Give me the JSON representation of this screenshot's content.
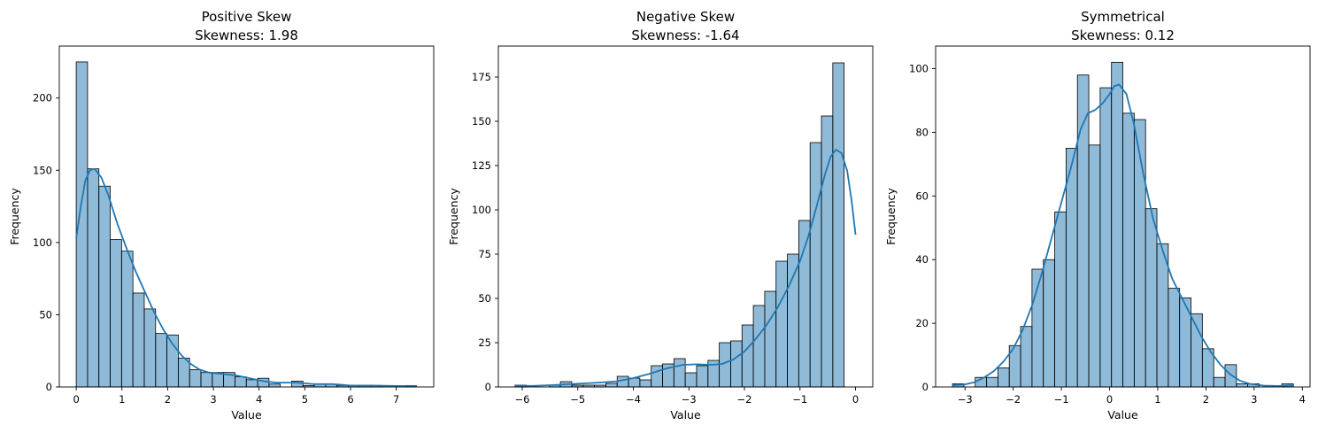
{
  "chart_data": [
    {
      "type": "histogram",
      "title": "Positive Skew",
      "subtitle": "Skewness: 1.98",
      "xlabel": "Value",
      "ylabel": "Frequency",
      "xlim": [
        -0.37,
        7.82
      ],
      "ylim": [
        0,
        236
      ],
      "xticks": [
        0,
        1,
        2,
        3,
        4,
        5,
        6,
        7
      ],
      "yticks": [
        0,
        50,
        100,
        150,
        200
      ],
      "bin_start": 0,
      "bin_width": 0.248,
      "counts": [
        225,
        151,
        139,
        102,
        94,
        65,
        54,
        37,
        36,
        20,
        12,
        10,
        10,
        10,
        7,
        5,
        6,
        2,
        0,
        4,
        1,
        2,
        2,
        1,
        1,
        1,
        1,
        0,
        0,
        1
      ],
      "kde_points": [
        [
          0,
          103
        ],
        [
          0.1,
          125
        ],
        [
          0.2,
          143
        ],
        [
          0.3,
          150
        ],
        [
          0.4,
          151
        ],
        [
          0.55,
          145
        ],
        [
          0.7,
          133
        ],
        [
          0.9,
          113
        ],
        [
          1.1,
          96
        ],
        [
          1.3,
          80
        ],
        [
          1.5,
          66
        ],
        [
          1.7,
          52
        ],
        [
          1.9,
          40
        ],
        [
          2.1,
          30
        ],
        [
          2.3,
          22
        ],
        [
          2.5,
          16
        ],
        [
          2.7,
          12
        ],
        [
          2.9,
          10
        ],
        [
          3.2,
          9
        ],
        [
          3.5,
          8
        ],
        [
          3.8,
          6
        ],
        [
          4.1,
          4
        ],
        [
          4.4,
          3
        ],
        [
          4.8,
          3
        ],
        [
          5.2,
          2
        ],
        [
          5.6,
          2
        ],
        [
          6.0,
          1
        ],
        [
          6.5,
          1
        ],
        [
          7.0,
          0.7
        ],
        [
          7.45,
          0.6
        ]
      ]
    },
    {
      "type": "histogram",
      "title": "Negative Skew",
      "subtitle": "Skewness: -1.64",
      "xlabel": "Value",
      "ylabel": "Frequency",
      "xlim": [
        -6.43,
        0.31
      ],
      "ylim": [
        0,
        192.5
      ],
      "xticks": [
        -6,
        -5,
        -4,
        -3,
        -2,
        -1,
        0
      ],
      "yticks": [
        0,
        25,
        50,
        75,
        100,
        125,
        150,
        175
      ],
      "bin_start": -6.13,
      "bin_width": 0.2043,
      "counts": [
        1,
        0,
        0,
        1,
        3,
        1,
        1,
        1,
        2,
        6,
        5,
        4,
        12,
        13,
        16,
        8,
        12,
        15,
        25,
        26,
        35,
        46,
        54,
        71,
        75,
        94,
        138,
        153,
        183
      ],
      "kde_points": [
        [
          -6.13,
          0.6
        ],
        [
          -5.8,
          0.6
        ],
        [
          -5.5,
          1
        ],
        [
          -5.2,
          1.5
        ],
        [
          -4.9,
          2
        ],
        [
          -4.6,
          2.5
        ],
        [
          -4.3,
          3.2
        ],
        [
          -4.0,
          5
        ],
        [
          -3.7,
          7.5
        ],
        [
          -3.4,
          10.5
        ],
        [
          -3.1,
          12.5
        ],
        [
          -2.85,
          12.8
        ],
        [
          -2.6,
          12.5
        ],
        [
          -2.4,
          13
        ],
        [
          -2.2,
          15.5
        ],
        [
          -2.0,
          20
        ],
        [
          -1.8,
          27
        ],
        [
          -1.6,
          35
        ],
        [
          -1.4,
          45
        ],
        [
          -1.2,
          57
        ],
        [
          -1.0,
          71
        ],
        [
          -0.85,
          85
        ],
        [
          -0.7,
          102
        ],
        [
          -0.55,
          120
        ],
        [
          -0.45,
          130
        ],
        [
          -0.35,
          134
        ],
        [
          -0.25,
          132
        ],
        [
          -0.15,
          122
        ],
        [
          -0.07,
          105
        ],
        [
          0.0,
          86
        ]
      ]
    },
    {
      "type": "histogram",
      "title": "Symmetrical",
      "subtitle": "Skewness: 0.12",
      "xlabel": "Value",
      "ylabel": "Frequency",
      "xlim": [
        -3.61,
        4.16
      ],
      "ylim": [
        0,
        107.1
      ],
      "xticks": [
        -3,
        -2,
        -1,
        0,
        1,
        2,
        3,
        4
      ],
      "yticks": [
        0,
        20,
        40,
        60,
        80,
        100
      ],
      "bin_start": -3.26,
      "bin_width": 0.2357,
      "counts": [
        1,
        0,
        3,
        3,
        6,
        13,
        19,
        37,
        40,
        55,
        75,
        98,
        76,
        94,
        102,
        86,
        84,
        56,
        45,
        31,
        28,
        23,
        12,
        3,
        7,
        1,
        1,
        0,
        0,
        1
      ],
      "kde_points": [
        [
          -3.26,
          0.5
        ],
        [
          -3.0,
          0.8
        ],
        [
          -2.8,
          1.5
        ],
        [
          -2.6,
          3
        ],
        [
          -2.4,
          5
        ],
        [
          -2.2,
          8
        ],
        [
          -2.0,
          12
        ],
        [
          -1.8,
          18
        ],
        [
          -1.6,
          26
        ],
        [
          -1.4,
          36
        ],
        [
          -1.2,
          47
        ],
        [
          -1.0,
          58
        ],
        [
          -0.8,
          69
        ],
        [
          -0.6,
          81
        ],
        [
          -0.45,
          86
        ],
        [
          -0.3,
          87
        ],
        [
          -0.15,
          89
        ],
        [
          0.0,
          92
        ],
        [
          0.1,
          94.5
        ],
        [
          0.2,
          95
        ],
        [
          0.35,
          92
        ],
        [
          0.5,
          83
        ],
        [
          0.7,
          67
        ],
        [
          0.9,
          53
        ],
        [
          1.1,
          43
        ],
        [
          1.3,
          34
        ],
        [
          1.5,
          28
        ],
        [
          1.7,
          22
        ],
        [
          1.9,
          16
        ],
        [
          2.1,
          11
        ],
        [
          2.3,
          7
        ],
        [
          2.5,
          4
        ],
        [
          2.7,
          2
        ],
        [
          2.9,
          1
        ],
        [
          3.2,
          0.4
        ],
        [
          3.5,
          0.3
        ],
        [
          3.83,
          0.5
        ]
      ]
    }
  ]
}
